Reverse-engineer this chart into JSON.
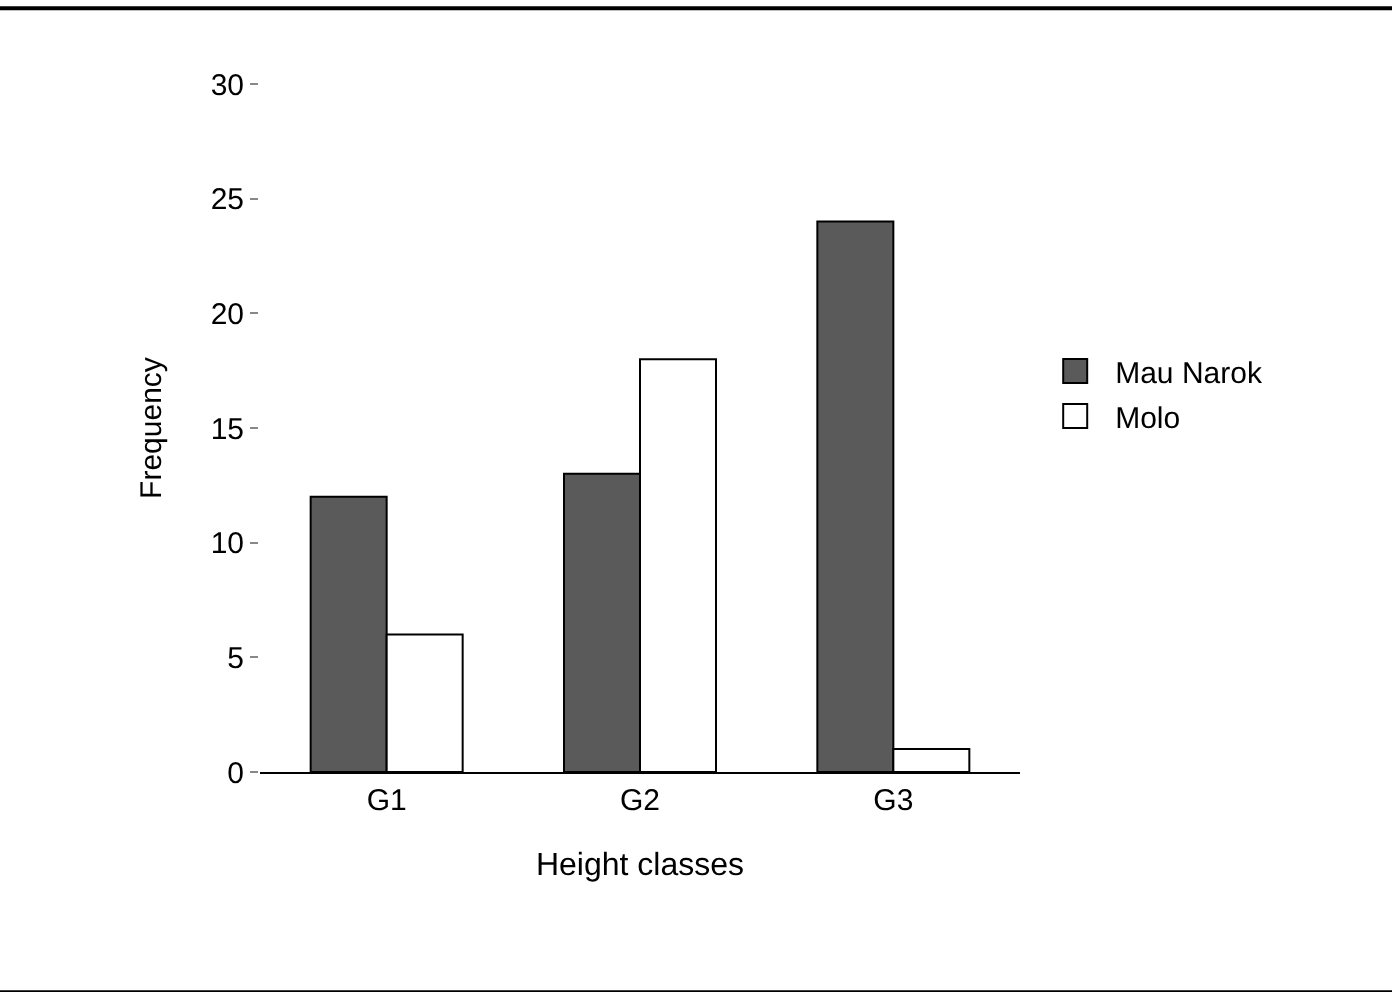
{
  "chart_data": {
    "type": "bar",
    "xlabel": "Height classes",
    "ylabel": "Frequency",
    "categories": [
      "G1",
      "G2",
      "G3"
    ],
    "series": [
      {
        "name": "Mau Narok",
        "color": "#5a5a5a",
        "values": [
          12,
          13,
          24
        ]
      },
      {
        "name": "Molo",
        "color": "#ffffff",
        "values": [
          6,
          18,
          1
        ]
      }
    ],
    "ylim": [
      0,
      30
    ],
    "yticks": [
      0,
      5,
      10,
      15,
      20,
      25,
      30
    ],
    "legend": "right"
  }
}
